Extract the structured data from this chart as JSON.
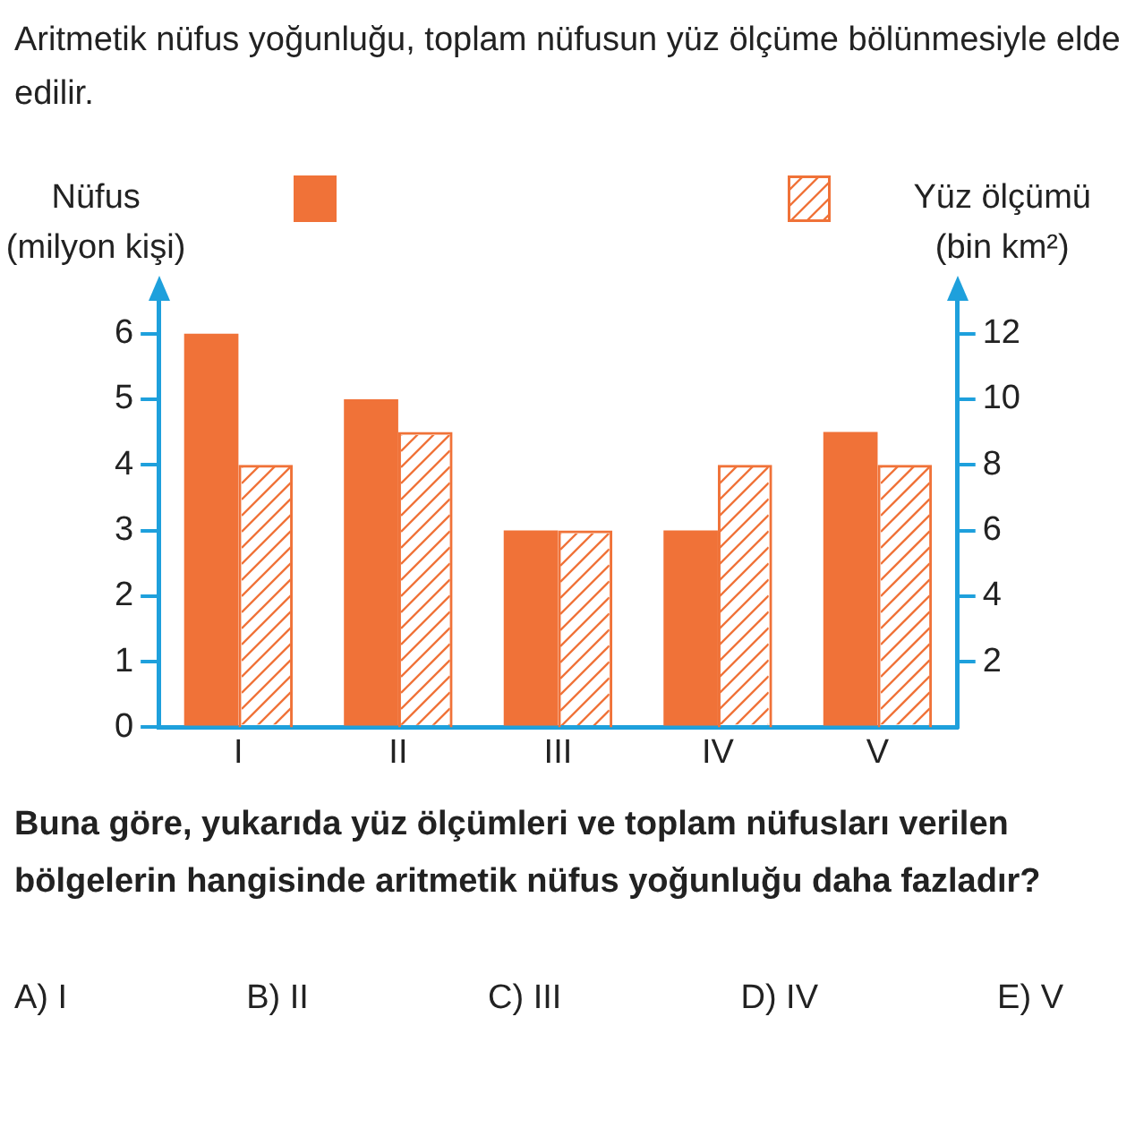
{
  "chart_data": {
    "type": "bar",
    "title": "Aritmetik nüfus yoğunluğu, toplam nüfusun yüz ölçüme bölünmesiyle elde edilir.",
    "ylabel": "Nüfus\n(milyon kişi)",
    "y2label": "Yüz ölçümü\n(bin km²)",
    "categories": [
      "I",
      "II",
      "III",
      "IV",
      "V"
    ],
    "series": [
      {
        "color": "#f07238",
        "values": [
          6,
          5,
          3,
          3,
          4.5
        ]
      },
      {
        "axis": "y2",
        "color": "#f07238",
        "values": [
          8,
          9,
          6,
          8,
          8
        ]
      }
    ],
    "ylim": [
      0,
      6.5
    ],
    "yticks": [
      0,
      1,
      2,
      3,
      4,
      5,
      6
    ],
    "y2lim": [
      0,
      13
    ],
    "y2ticks": [
      2,
      4,
      6,
      8,
      10,
      12
    ],
    "grid": false,
    "annotations": [
      "Buna göre, yukarıda yüz ölçümleri ve toplam nüfusları verilen bölgelerin hangisinde aritmetik nüfus yoğunluğu daha fazladır?",
      "A) I",
      "B) II",
      "C) III",
      "D) IV",
      "E) V"
    ]
  }
}
